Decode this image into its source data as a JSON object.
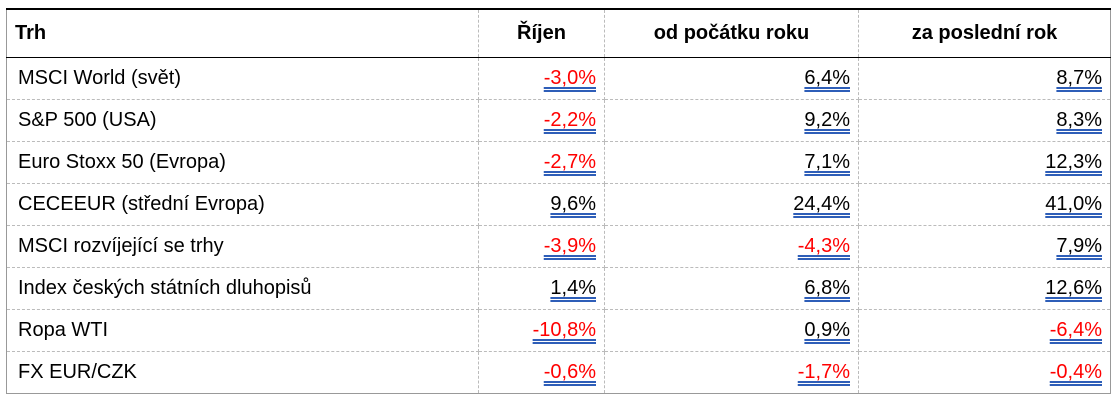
{
  "table": {
    "headers": [
      "Trh",
      "Říjen",
      "od počátku roku",
      "za poslední rok"
    ],
    "rows": [
      [
        "MSCI World (svět)",
        "-3,0%",
        "6,4%",
        "8,7%"
      ],
      [
        "S&P 500 (USA)",
        "-2,2%",
        "9,2%",
        "8,3%"
      ],
      [
        "Euro Stoxx 50 (Evropa)",
        "-2,7%",
        "7,1%",
        "12,3%"
      ],
      [
        "CECEEUR (střední Evropa)",
        "9,6%",
        "24,4%",
        "41,0%"
      ],
      [
        "MSCI rozvíjející se trhy",
        "-3,9%",
        "-4,3%",
        "7,9%"
      ],
      [
        "Index českých státních dluhopisů",
        "1,4%",
        "6,8%",
        "12,6%"
      ],
      [
        "Ropa WTI",
        "-10,8%",
        "0,9%",
        "-6,4%"
      ],
      [
        "FX EUR/CZK",
        "-0,6%",
        "-1,7%",
        "-0,4%"
      ]
    ]
  }
}
